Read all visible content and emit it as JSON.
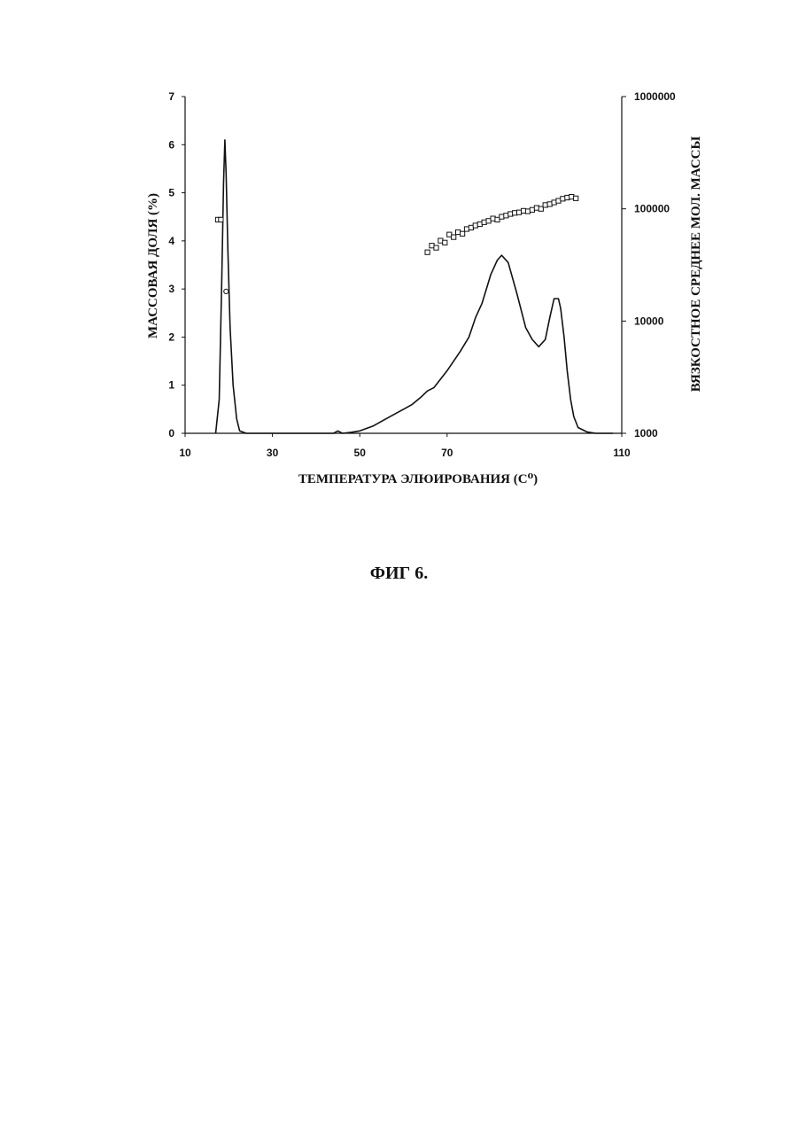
{
  "chart_data": {
    "type": "line",
    "xlabel": "ТЕМПЕРАТУРА ЭЛЮИРОВАНИЯ (С⁰)",
    "ylabel_left": "МАССОВАЯ ДОЛЯ (%)",
    "ylabel_right": "ВЯЗКОСТНОЕ СРЕДНЕЕ МОЛ. МАССЫ",
    "xlim": [
      10,
      110
    ],
    "ylim_left": [
      0,
      7
    ],
    "ylim_right": [
      1000,
      1000000
    ],
    "right_axis_scale": "log",
    "x_ticks": [
      "10",
      "30",
      "50",
      "70",
      "110"
    ],
    "y_left_ticks": [
      "0",
      "1",
      "2",
      "3",
      "4",
      "5",
      "6",
      "7"
    ],
    "y_right_ticks": [
      "1000",
      "10000",
      "100000",
      "1000000"
    ],
    "grid": false,
    "series": [
      {
        "axis": "left",
        "style": "line",
        "x": [
          17,
          17.8,
          18.4,
          18.8,
          19.1,
          19.4,
          19.8,
          20.3,
          21,
          21.8,
          22.5,
          24,
          26,
          35,
          44,
          45,
          46,
          48,
          50,
          53,
          56,
          58,
          60,
          62,
          64,
          65.5,
          67,
          70,
          73,
          75,
          76.5,
          78,
          79,
          80,
          81.5,
          82.5,
          84,
          86,
          88,
          89.5,
          91,
          92.5,
          93.5,
          94.5,
          95.5,
          96,
          96.8,
          97.5,
          98.3,
          99,
          100,
          102,
          104,
          106,
          108
        ],
        "y": [
          0,
          0.7,
          3.2,
          5.2,
          6.1,
          5.4,
          3.8,
          2.2,
          1.0,
          0.3,
          0.05,
          0,
          0,
          0,
          0,
          0.05,
          0,
          0.02,
          0.05,
          0.15,
          0.3,
          0.4,
          0.5,
          0.6,
          0.75,
          0.88,
          0.95,
          1.3,
          1.7,
          2.0,
          2.4,
          2.7,
          3.0,
          3.3,
          3.6,
          3.7,
          3.55,
          2.9,
          2.2,
          1.95,
          1.8,
          1.95,
          2.4,
          2.8,
          2.8,
          2.6,
          2.0,
          1.3,
          0.7,
          0.35,
          0.12,
          0.03,
          0,
          0,
          0
        ]
      },
      {
        "axis": "right",
        "style": "markers",
        "marker": "square-open",
        "x": [
          17.5,
          18.2,
          65.5,
          66.5,
          67.5,
          68.5,
          69.5,
          70.5,
          71.5,
          72.5,
          73.5,
          74.5,
          75.5,
          76.5,
          77.5,
          78.5,
          79.5,
          80.5,
          81.5,
          82.5,
          83.5,
          84.5,
          85.5,
          86.5,
          87.5,
          88.5,
          89.5,
          90.5,
          91.5,
          92.5,
          93.5,
          94.5,
          95.5,
          96.5,
          97.5,
          98.5,
          99.5
        ],
        "y": [
          80000,
          80000,
          41000,
          47000,
          45000,
          52000,
          50000,
          59000,
          56000,
          62000,
          60000,
          66000,
          68000,
          71000,
          73000,
          76000,
          78000,
          82000,
          80000,
          85000,
          87000,
          90000,
          92000,
          93000,
          96000,
          95000,
          98000,
          102000,
          100000,
          108000,
          110000,
          114000,
          118000,
          123000,
          126000,
          128000,
          124000
        ]
      },
      {
        "axis": "left",
        "style": "markers",
        "marker": "circle-open",
        "x": [
          19.4
        ],
        "y": [
          2.95
        ]
      }
    ]
  },
  "caption": "ФИГ 6."
}
